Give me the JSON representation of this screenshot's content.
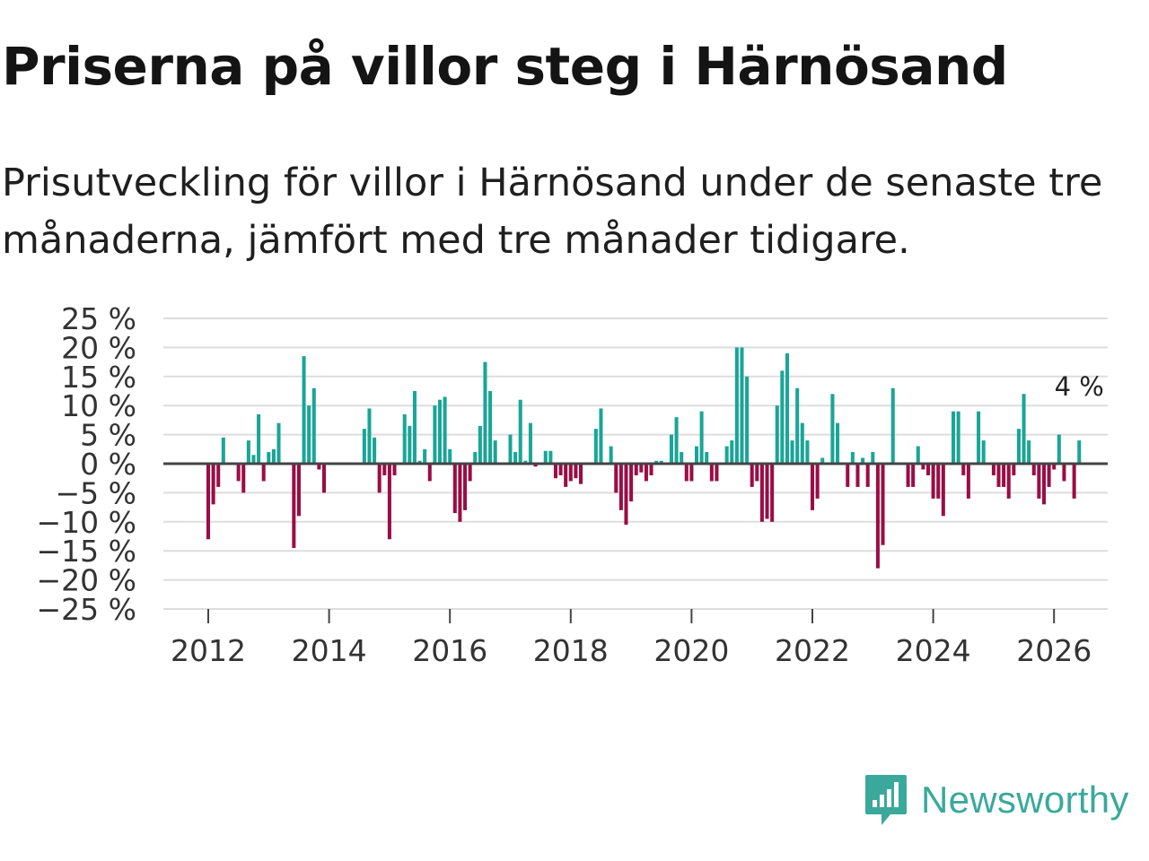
{
  "header": {
    "title": "Priserna på villor steg i Härnösand",
    "subtitle": "Prisutveckling för villor i Härnösand under de senaste tre månaderna, jämfört med tre månader tidigare."
  },
  "brand": {
    "name": "Newsworthy"
  },
  "colors": {
    "positive": "#1aa597",
    "negative": "#9a0d45",
    "grid": "#dddddd",
    "zero": "#444444"
  },
  "chart_data": {
    "type": "bar",
    "title": "Priserna på villor steg i Härnösand",
    "subtitle": "Prisutveckling för villor i Härnösand under de senaste tre månaderna, jämfört med tre månader tidigare.",
    "xlabel": "",
    "ylabel": "",
    "ylim": [
      -25,
      25
    ],
    "yticks": [
      25,
      20,
      15,
      10,
      5,
      0,
      -5,
      -10,
      -15,
      -20,
      -25
    ],
    "ytick_labels": [
      "25 %",
      "20 %",
      "15 %",
      "10 %",
      "5 %",
      "0 %",
      "−5 %",
      "−10 %",
      "−15 %",
      "−20 %",
      "−25 %"
    ],
    "xticks": [
      2012,
      2014,
      2016,
      2018,
      2020,
      2022,
      2024,
      2026
    ],
    "xtick_labels": [
      "2012",
      "2014",
      "2016",
      "2018",
      "2020",
      "2022",
      "2024",
      "2026"
    ],
    "x_start": 2012.0,
    "step_months": 1,
    "grid": true,
    "annotation": {
      "text": "4 %",
      "value": 4
    },
    "values": [
      -13,
      -7,
      -4,
      4.5,
      0,
      0,
      -3,
      -5,
      4,
      1.5,
      8.5,
      -3,
      2,
      2.5,
      7,
      0,
      0,
      -14.5,
      -9,
      18.5,
      10,
      13,
      -1,
      -5,
      0,
      0,
      0,
      0,
      0,
      0,
      0,
      6,
      9.5,
      4.5,
      -5,
      -2,
      -13,
      -2,
      0,
      8.5,
      6.5,
      12.5,
      0.5,
      2.5,
      -3,
      10,
      11,
      11.5,
      2.5,
      -8.5,
      -10,
      -8,
      -3,
      2,
      6.5,
      17.5,
      12.5,
      4,
      0,
      0,
      5,
      2,
      11,
      0.5,
      7,
      -0.5,
      0,
      2.2,
      2.2,
      -2.5,
      -2,
      -4,
      -3,
      -2.5,
      -3.5,
      0,
      0,
      6,
      9.5,
      0,
      3,
      -5,
      -8,
      -10.5,
      -6.5,
      -2,
      -1.5,
      -3,
      -2,
      0.5,
      0.5,
      0,
      5,
      8,
      2,
      -3,
      -3,
      3,
      9,
      2,
      -3,
      -3,
      0,
      3,
      4,
      20,
      20,
      15,
      -4,
      -3,
      -10,
      -9.5,
      -10,
      10,
      16,
      19,
      4,
      13,
      7,
      4,
      -8,
      -6,
      1,
      0,
      12,
      7,
      0,
      -4,
      2,
      -4,
      1,
      -4,
      2,
      -18,
      -14,
      0,
      13,
      0,
      0,
      -4,
      -4,
      3,
      -1,
      -2,
      -6,
      -6,
      -9,
      0,
      9,
      9,
      -2,
      -6,
      0,
      9,
      4,
      0,
      -2,
      -4,
      -4,
      -6,
      -2,
      6,
      12,
      4,
      -2,
      -6,
      -7,
      -4,
      -1,
      5,
      -3,
      0,
      -6,
      4
    ]
  }
}
